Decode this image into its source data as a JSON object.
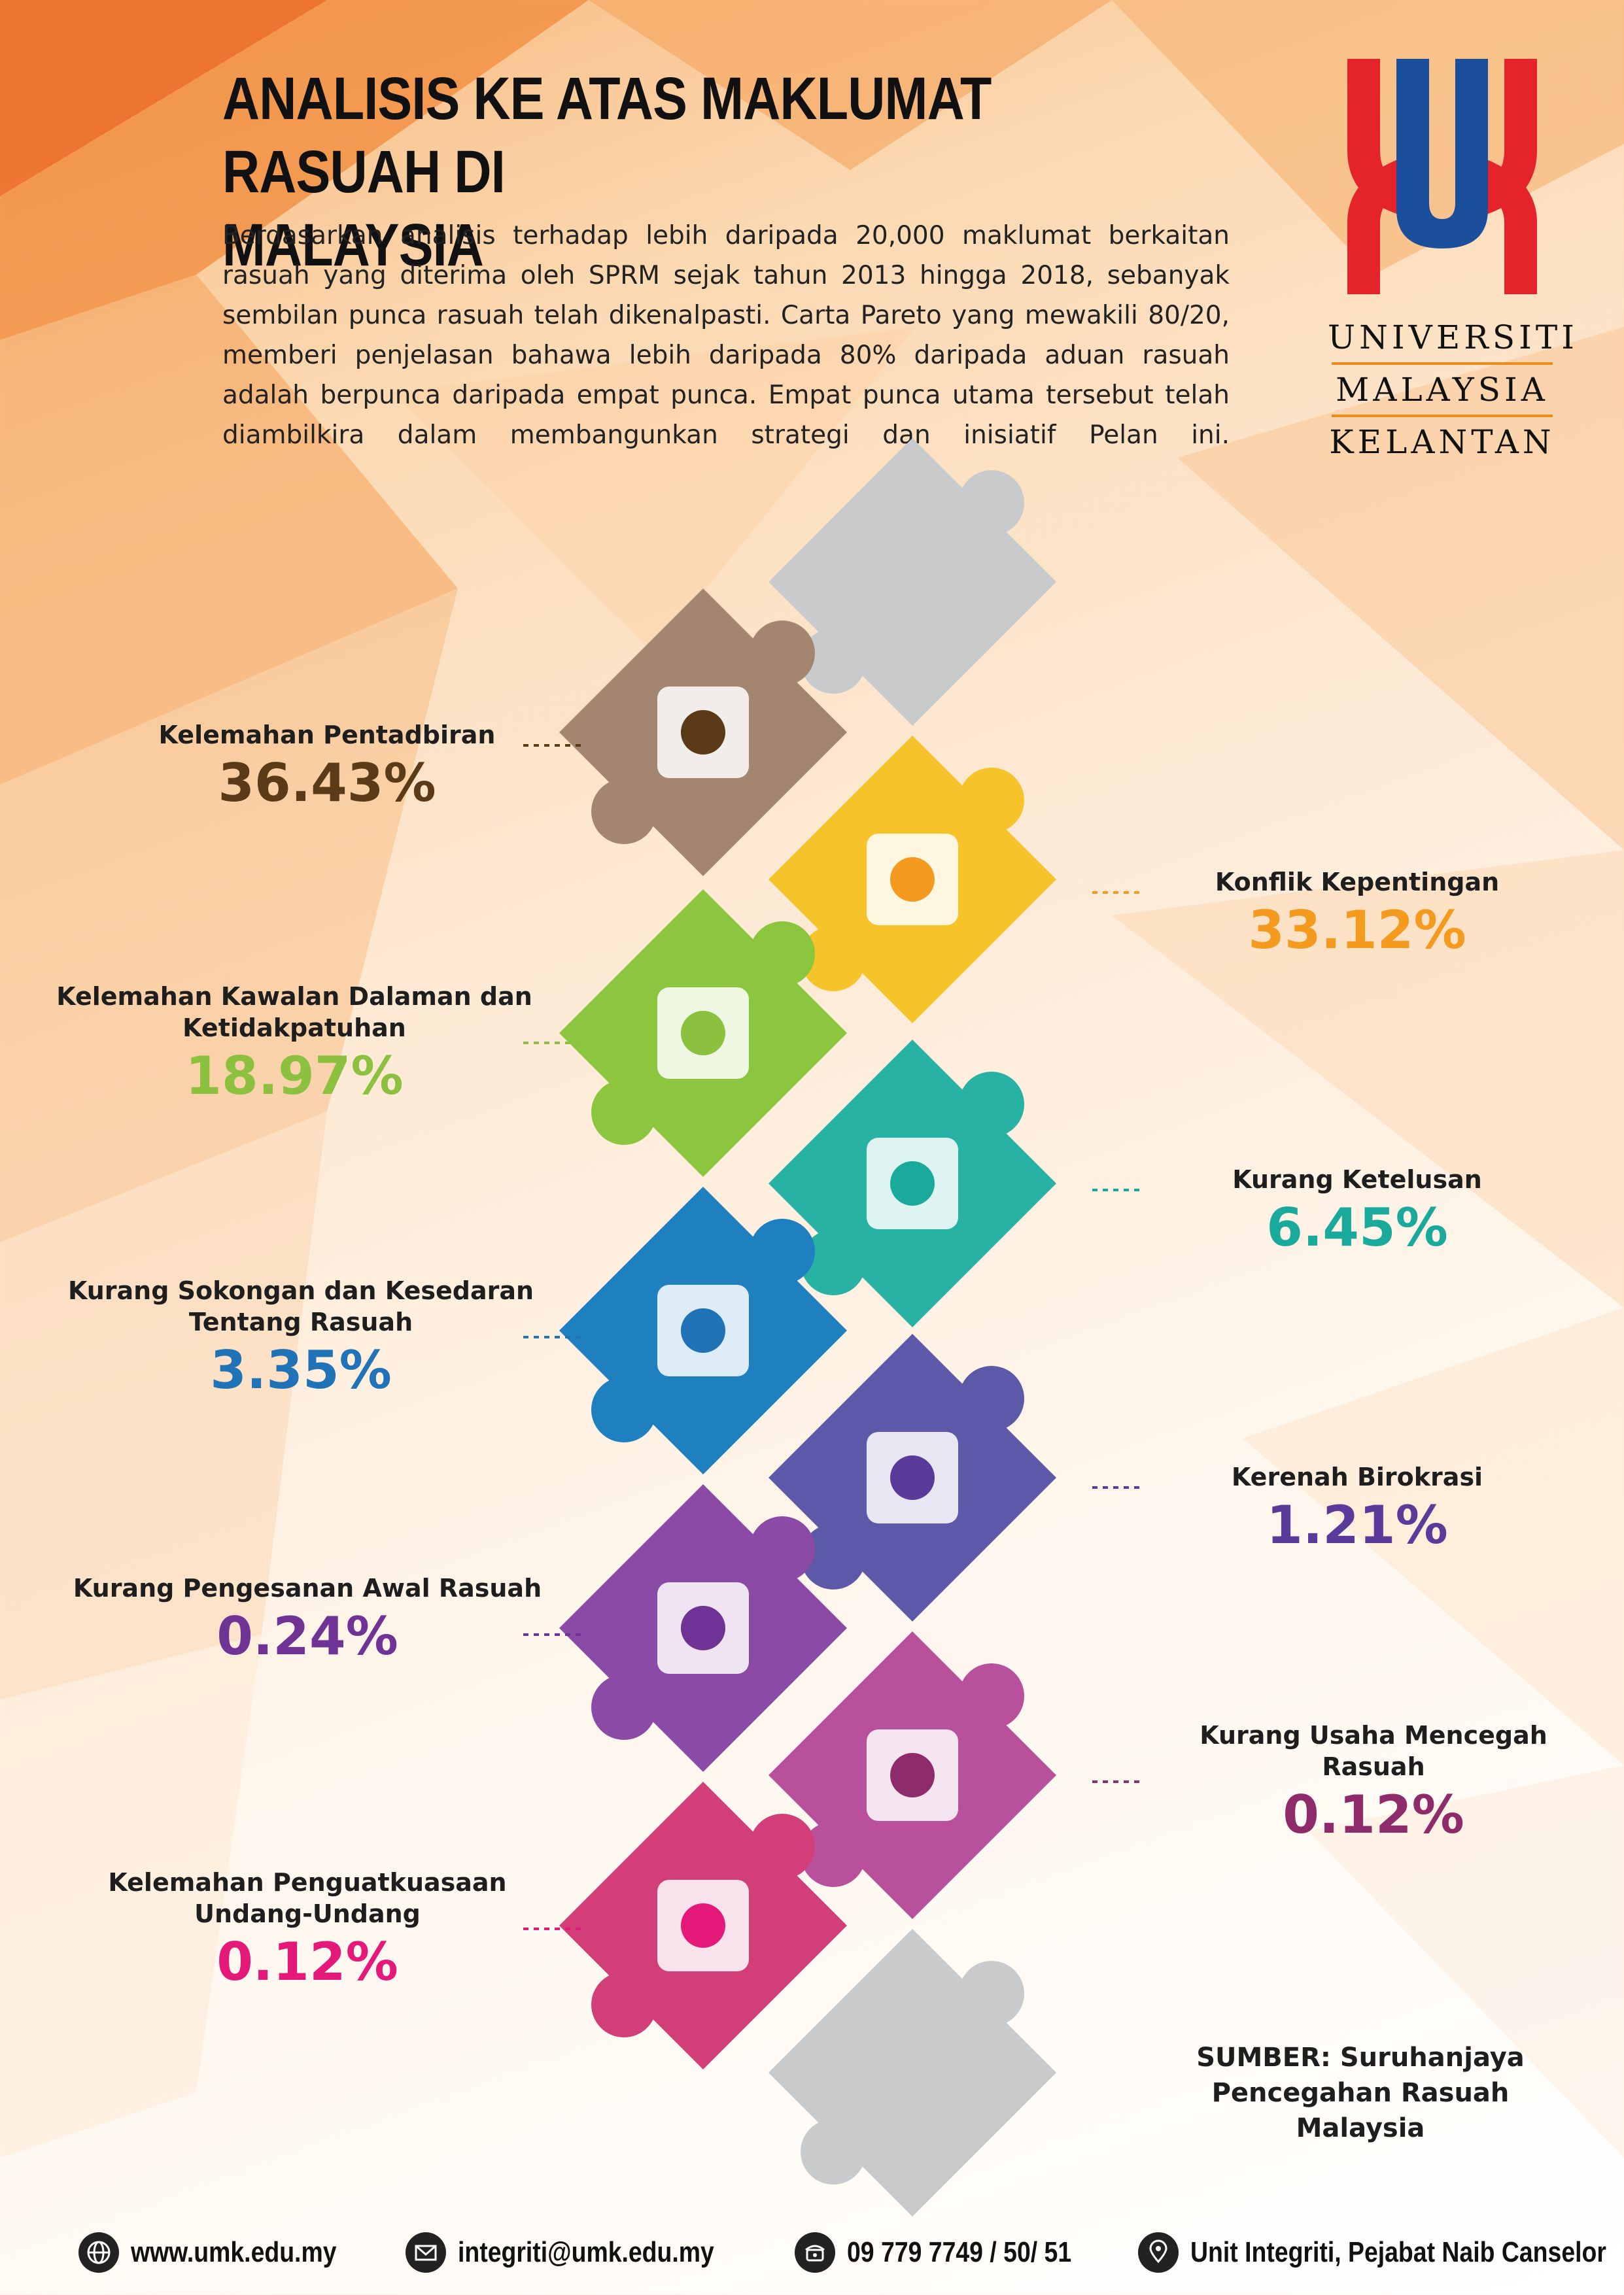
{
  "header": {
    "title_line1": "ANALISIS KE ATAS MAKLUMAT RASUAH DI",
    "title_line2": "MALAYSIA",
    "intro": "Berdasarkan analisis terhadap lebih daripada 20,000 maklumat berkaitan rasuah yang diterima oleh SPRM sejak tahun 2013 hingga 2018, sebanyak sembilan punca rasuah telah dikenalpasti. Carta Pareto yang mewakili 80/20, memberi penjelasan bahawa lebih daripada 80% daripada aduan rasuah adalah berpunca daripada empat punca. Empat punca utama tersebut telah diambilkira dalam membangunkan strategi dan inisiatif Pelan ini."
  },
  "logo": {
    "line1": "UNIVERSITI",
    "line2": "MALAYSIA",
    "line3": "KELANTAN",
    "colors": {
      "red": "#e5232b",
      "blue": "#1b4f9c",
      "rule": "#e98c1b"
    }
  },
  "causes": [
    {
      "label": "Kelemahan Pentadbiran",
      "pct": "36.43%",
      "color": "#5a3a17",
      "icon": "voting-hands-icon"
    },
    {
      "label": "Konflik Kepentingan",
      "pct": "33.12%",
      "color": "#f39a1f",
      "icon": "folders-cycle-icon"
    },
    {
      "label": "Kelemahan Kawalan Dalaman dan Ketidakpatuhan",
      "pct": "18.97%",
      "color": "#8cc13f",
      "icon": "oath-book-icon"
    },
    {
      "label": "Kurang Ketelusan",
      "pct": "6.45%",
      "color": "#1aaa9b",
      "icon": "magnifier-checklist-icon"
    },
    {
      "label": "Kurang Sokongan dan Kesedaran Tentang Rasuah",
      "pct": "3.35%",
      "color": "#1f73b6",
      "icon": "handshake-money-icon"
    },
    {
      "label": "Kerenah Birokrasi",
      "pct": "1.21%",
      "color": "#5b3b9a",
      "icon": "speaker-podium-icon"
    },
    {
      "label": "Kurang Pengesanan Awal Rasuah",
      "pct": "0.24%",
      "color": "#6f3396",
      "icon": "clipboard-magnifier-icon"
    },
    {
      "label": "Kurang Usaha Mencegah Rasuah",
      "pct": "0.12%",
      "color": "#8e2c6b",
      "icon": "document-pen-icon"
    },
    {
      "label": "Kelemahan Penguatkuasaan Undang-Undang",
      "pct": "0.12%",
      "color": "#e5197a",
      "icon": "gavel-scales-icon"
    }
  ],
  "source": "SUMBER: Suruhanjaya Pencegahan Rasuah Malaysia",
  "footer": {
    "website": "www.umk.edu.my",
    "email": "integriti@umk.edu.my",
    "phone": "09 779 7749 / 50/ 51",
    "office": "Unit Integriti, Pejabat Naib Canselor"
  }
}
